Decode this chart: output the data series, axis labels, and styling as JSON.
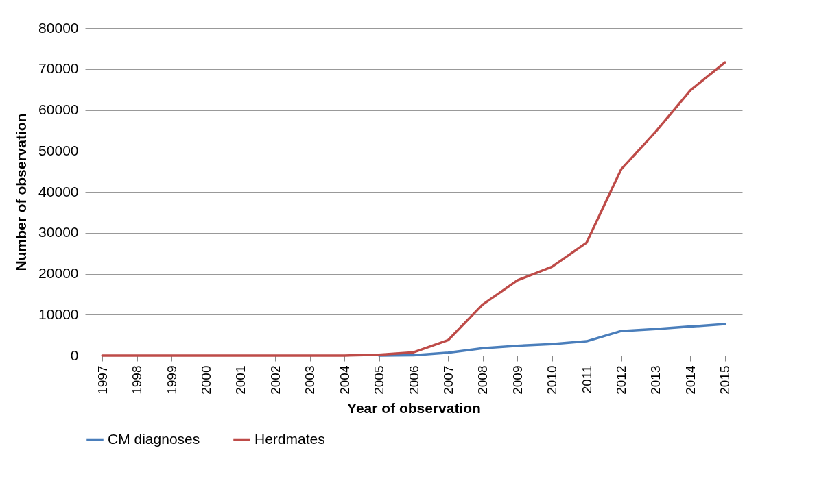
{
  "chart_data": {
    "type": "line",
    "xlabel": "Year of observation",
    "ylabel": "Number of observation",
    "categories": [
      "1997",
      "1998",
      "1999",
      "2000",
      "2001",
      "2002",
      "2003",
      "2004",
      "2005",
      "2006",
      "2007",
      "2008",
      "2009",
      "2010",
      "2011",
      "2012",
      "2013",
      "2014",
      "2015"
    ],
    "series": [
      {
        "name": "CM diagnoses",
        "color": "#4a7ebb",
        "values": [
          null,
          null,
          null,
          null,
          null,
          null,
          null,
          null,
          0,
          100,
          700,
          1800,
          2400,
          2800,
          3500,
          6000,
          6500,
          7100,
          7700
        ]
      },
      {
        "name": "Herdmates",
        "color": "#be4b48",
        "values": [
          0,
          0,
          0,
          0,
          0,
          0,
          0,
          0,
          200,
          800,
          3800,
          12500,
          18400,
          21700,
          27600,
          45500,
          54700,
          64800,
          71600
        ]
      }
    ],
    "ylim": [
      0,
      80000
    ],
    "yticks": [
      0,
      10000,
      20000,
      30000,
      40000,
      50000,
      60000,
      70000,
      80000
    ],
    "grid": "y",
    "legend": "bottom",
    "marker": "none",
    "line_style": "solid"
  }
}
